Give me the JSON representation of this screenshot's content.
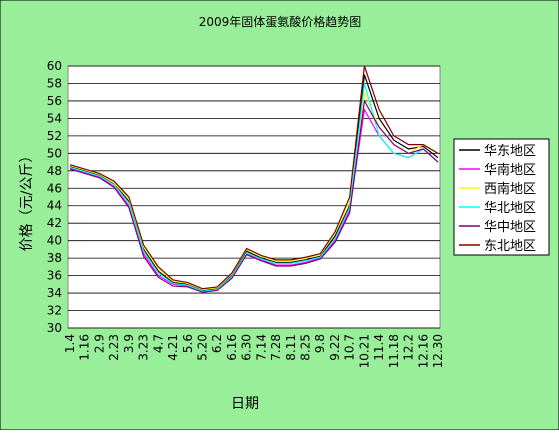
{
  "chart_data": {
    "type": "line",
    "title": "2009年固体蛋氨酸价格趋势图",
    "x_label": "日期",
    "y_label": "价格（元/公斤）",
    "categories": [
      "1.4",
      "1.16",
      "2.9",
      "2.23",
      "3.9",
      "3.23",
      "4.7",
      "4.21",
      "5.6",
      "5.20",
      "6.2",
      "6.16",
      "6.30",
      "7.14",
      "7.28",
      "8.11",
      "8.25",
      "9.8",
      "9.22",
      "10.7",
      "10.21",
      "11.4",
      "11.18",
      "12.2",
      "12.16",
      "12.30"
    ],
    "series": [
      {
        "name": "华东地区",
        "color": "#000000",
        "values": [
          48.5,
          48,
          47.5,
          46.5,
          44.5,
          39,
          36.5,
          35.2,
          35,
          34.3,
          34.5,
          36,
          38.8,
          38,
          37.5,
          37.5,
          37.8,
          38.2,
          40.5,
          44,
          59,
          54,
          51.5,
          50.5,
          50.8,
          49.5
        ]
      },
      {
        "name": "华南地区",
        "color": "#ff00ff",
        "values": [
          48.3,
          47.8,
          47.3,
          46.2,
          44,
          38.5,
          36,
          35,
          34.8,
          34.2,
          34.4,
          35.8,
          38.5,
          37.8,
          37.2,
          37.2,
          37.5,
          38,
          40,
          43.5,
          55,
          52,
          50,
          49.5,
          50.5,
          49
        ]
      },
      {
        "name": "西南地区",
        "color": "#ffff00",
        "values": [
          48.6,
          48.1,
          47.6,
          46.6,
          44.8,
          39.3,
          36.8,
          35.4,
          35.1,
          34.4,
          34.6,
          36.2,
          39,
          38.2,
          37.7,
          37.7,
          38,
          38.4,
          40.8,
          44.5,
          57,
          53,
          51,
          50,
          51,
          50
        ]
      },
      {
        "name": "华北地区",
        "color": "#00ffff",
        "values": [
          48.4,
          47.9,
          47.4,
          46.4,
          44.3,
          38.8,
          36.3,
          35.1,
          34.9,
          34.2,
          34.4,
          35.9,
          38.6,
          37.9,
          37.4,
          37.4,
          37.7,
          38.1,
          40.2,
          43.8,
          58,
          52,
          50,
          49.5,
          50.5,
          49
        ]
      },
      {
        "name": "华中地区",
        "color": "#800080",
        "values": [
          48.2,
          47.7,
          47.2,
          46.1,
          43.8,
          38.2,
          35.8,
          34.8,
          34.7,
          34.1,
          34.3,
          35.7,
          38.4,
          37.7,
          37.1,
          37.1,
          37.4,
          37.9,
          39.8,
          43.2,
          56,
          53,
          51,
          50,
          50.5,
          49
        ]
      },
      {
        "name": "东北地区",
        "color": "#800000",
        "values": [
          48.7,
          48.2,
          47.7,
          46.8,
          45,
          39.5,
          37,
          35.5,
          35.2,
          34.5,
          34.7,
          36.3,
          39.1,
          38.3,
          37.8,
          37.8,
          38.1,
          38.5,
          41,
          45,
          60,
          55,
          52,
          51,
          51,
          50
        ]
      }
    ],
    "ylim": [
      30,
      60
    ],
    "yticks": [
      30,
      32,
      34,
      36,
      38,
      40,
      42,
      44,
      46,
      48,
      50,
      52,
      54,
      56,
      58,
      60
    ],
    "grid": true
  }
}
